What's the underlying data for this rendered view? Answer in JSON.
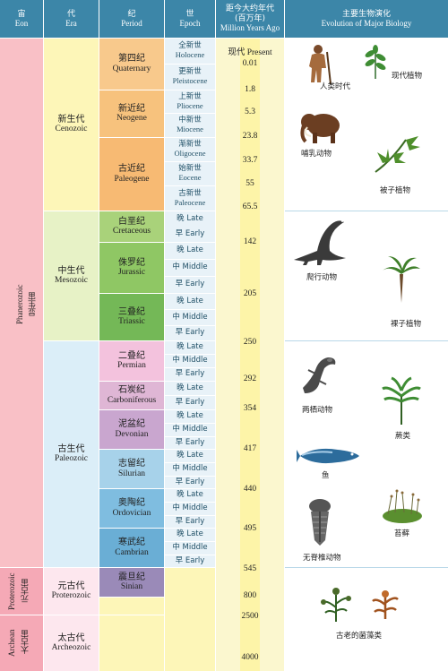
{
  "headers": {
    "eon": {
      "cn": "宙",
      "en": "Eon"
    },
    "era": {
      "cn": "代",
      "en": "Era"
    },
    "period": {
      "cn": "纪",
      "en": "Period"
    },
    "epoch": {
      "cn": "世",
      "en": "Epoch"
    },
    "age": {
      "cn": "距今大约年代",
      "cn2": "(百万年)",
      "en": "Million Years Ago"
    },
    "bio": {
      "cn": "主要生物演化",
      "en": "Evolution of Major Biology"
    }
  },
  "eons": [
    {
      "cn": "显生宙",
      "en": "Phanerozoic"
    },
    {
      "cn": "元古宙",
      "en": "Proterozoic"
    },
    {
      "cn": "太古宙",
      "en": "Archean"
    }
  ],
  "eras": [
    {
      "cn": "新生代",
      "en": "Cenozoic"
    },
    {
      "cn": "中生代",
      "en": "Mesozoic"
    },
    {
      "cn": "古生代",
      "en": "Paleozoic"
    },
    {
      "cn": "元古代",
      "en": "Proterozoic"
    },
    {
      "cn": "太古代",
      "en": "Archeozoic"
    }
  ],
  "periods": [
    {
      "cn": "第四纪",
      "en": "Quaternary"
    },
    {
      "cn": "新近纪",
      "en": "Neogene"
    },
    {
      "cn": "古近纪",
      "en": "Paleogene"
    },
    {
      "cn": "白垩纪",
      "en": "Cretaceous"
    },
    {
      "cn": "侏罗纪",
      "en": "Jurassic"
    },
    {
      "cn": "三叠纪",
      "en": "Triassic"
    },
    {
      "cn": "二叠纪",
      "en": "Permian"
    },
    {
      "cn": "石炭纪",
      "en": "Carboniferous"
    },
    {
      "cn": "泥盆纪",
      "en": "Devonian"
    },
    {
      "cn": "志留纪",
      "en": "Silurian"
    },
    {
      "cn": "奥陶纪",
      "en": "Ordovician"
    },
    {
      "cn": "寒武纪",
      "en": "Cambrian"
    },
    {
      "cn": "震旦纪",
      "en": "Sinian"
    }
  ],
  "epochs": [
    {
      "cn": "全新世",
      "en": "Holocene"
    },
    {
      "cn": "更新世",
      "en": "Pleistocene"
    },
    {
      "cn": "上新世",
      "en": "Pliocene"
    },
    {
      "cn": "中新世",
      "en": "Miocene"
    },
    {
      "cn": "渐新世",
      "en": "Oligocene"
    },
    {
      "cn": "始新世",
      "en": "Eocene"
    },
    {
      "cn": "古新世",
      "en": "Paleocene"
    },
    {
      "text": "晚 Late"
    },
    {
      "text": "早 Early"
    },
    {
      "text": "晚 Late"
    },
    {
      "text": "中 Middle"
    },
    {
      "text": "早 Early"
    },
    {
      "text": "晚 Late"
    },
    {
      "text": "中 Middle"
    },
    {
      "text": "早 Early"
    },
    {
      "text": "晚 Late"
    },
    {
      "text": "中 Middle"
    },
    {
      "text": "早 Early"
    },
    {
      "text": "晚 Late"
    },
    {
      "text": "早 Early"
    },
    {
      "text": "晚 Late"
    },
    {
      "text": "中 Middle"
    },
    {
      "text": "早 Early"
    },
    {
      "text": "晚 Late"
    },
    {
      "text": "中 Middle"
    },
    {
      "text": "早 Early"
    },
    {
      "text": "晚 Late"
    },
    {
      "text": "中 Middle"
    },
    {
      "text": "早 Early"
    },
    {
      "text": "晚 Late"
    },
    {
      "text": "中 Middle"
    },
    {
      "text": "早 Early"
    }
  ],
  "ages": [
    "现代 Present",
    "0.01",
    "1.8",
    "5.3",
    "23.8",
    "33.7",
    "55",
    "65.5",
    "142",
    "205",
    "250",
    "292",
    "354",
    "417",
    "440",
    "495",
    "545",
    "800",
    "2500",
    "4000"
  ],
  "biology": {
    "human": "人类时代",
    "modern_plants": "现代植物",
    "mammals": "哺乳动物",
    "angiosperms": "被子植物",
    "reptiles": "爬行动物",
    "gymnosperms": "裸子植物",
    "amphibians": "两栖动物",
    "ferns": "蕨类",
    "fish": "鱼",
    "mosses": "苔藓",
    "invertebrates": "无脊椎动物",
    "algae": "古老的菌藻类"
  },
  "colors": {
    "header": "#3c86a8",
    "phanerozoic": "#f9c0c6",
    "precambrian": "#f5a9b6",
    "cenozoic_era": "#fdf6b8",
    "mesozoic_era": "#e7f2c6",
    "paleozoic_era": "#dbeef8",
    "proterozoic_era": "#fde7ee",
    "quaternary": "#f8c98c",
    "neogene": "#f7c27d",
    "paleogene": "#f7ba73",
    "cretaceous": "#a9d27a",
    "jurassic": "#8fc764",
    "triassic": "#74b857",
    "permian": "#f3c2dd",
    "carboniferous": "#dfb6d5",
    "devonian": "#c9a6cf",
    "silurian": "#a7d2ea",
    "ordovician": "#7fbde0",
    "cambrian": "#6aaed5",
    "sinian": "#9a8ab8",
    "epoch_cell": "#e8f2f8",
    "age_column": "#fbf7cf"
  }
}
